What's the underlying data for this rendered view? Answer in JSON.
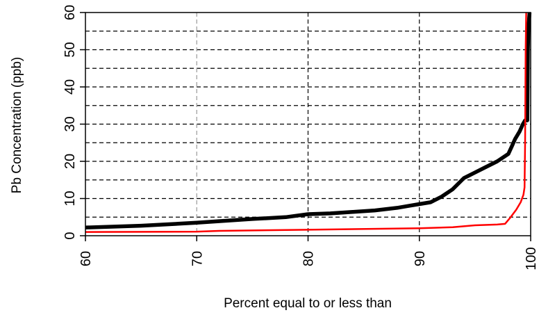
{
  "chart_data": {
    "type": "line",
    "title": "",
    "xlabel": "Percent equal to or less than",
    "ylabel": "Pb Concentration (ppb)",
    "xlim": [
      60,
      100
    ],
    "ylim": [
      0,
      60
    ],
    "xticks": [
      60,
      70,
      80,
      90,
      100
    ],
    "yticks": [
      0,
      10,
      20,
      30,
      40,
      50,
      60
    ],
    "grid": "dashed",
    "legend": "none",
    "series": [
      {
        "color": "#000000",
        "x": [
          60,
          65,
          70,
          75,
          78,
          80,
          82,
          84,
          86,
          88,
          89,
          90,
          91,
          92,
          93,
          94,
          95,
          96,
          97,
          98,
          98.3,
          98.6,
          99,
          99.3,
          99.5,
          99.7,
          99.75,
          99.8,
          99.85,
          99.9
        ],
        "values": [
          2.2,
          2.7,
          3.5,
          4.5,
          5.0,
          5.8,
          6.0,
          6.4,
          6.8,
          7.5,
          8.0,
          8.5,
          9.0,
          10.5,
          12.5,
          15.5,
          17.0,
          18.5,
          20.0,
          22.0,
          24.0,
          26.0,
          28.0,
          30.0,
          31.0,
          31.0,
          50.0,
          56.0,
          58.0,
          60.0
        ]
      },
      {
        "color": "#ff0000",
        "x": [
          60,
          70,
          72,
          80,
          90,
          93,
          95,
          97,
          97.7,
          98.2,
          98.7,
          99.1,
          99.35,
          99.45,
          99.5,
          99.55,
          99.6
        ],
        "values": [
          1.0,
          1.1,
          1.3,
          1.6,
          2.0,
          2.3,
          2.8,
          3.0,
          3.2,
          5.0,
          7.0,
          9.0,
          11.0,
          13.0,
          25.0,
          50.0,
          60.0
        ]
      }
    ]
  }
}
